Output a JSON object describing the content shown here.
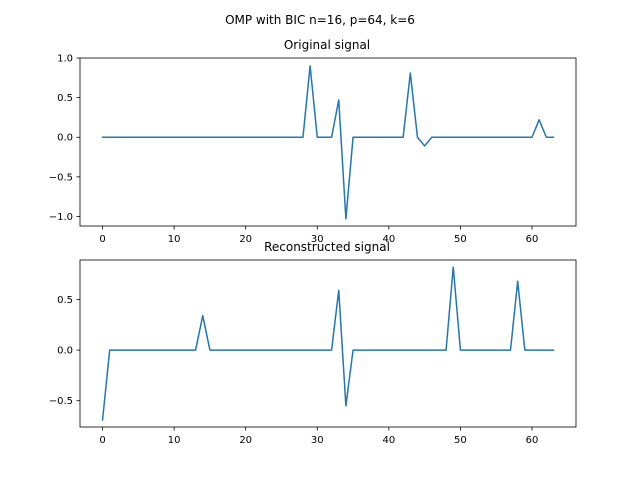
{
  "suptitle": "OMP with BIC n=16, p=64, k=6",
  "chart_data": [
    {
      "type": "line",
      "title": "Original signal",
      "xlabel": "",
      "ylabel": "",
      "xlim": [
        -3.15,
        66.15
      ],
      "ylim": [
        -1.12,
        1.0
      ],
      "xticks": [
        0,
        10,
        20,
        30,
        40,
        50,
        60
      ],
      "yticks": [
        -1.0,
        -0.5,
        0.0,
        0.5,
        1.0
      ],
      "xtick_labels": [
        "0",
        "10",
        "20",
        "30",
        "40",
        "50",
        "60"
      ],
      "ytick_labels": [
        "−1.0",
        "−0.5",
        "0.0",
        "0.5",
        "1.0"
      ],
      "color": "#1f77b4",
      "x": [
        0,
        1,
        2,
        3,
        4,
        5,
        6,
        7,
        8,
        9,
        10,
        11,
        12,
        13,
        14,
        15,
        16,
        17,
        18,
        19,
        20,
        21,
        22,
        23,
        24,
        25,
        26,
        27,
        28,
        29,
        30,
        31,
        32,
        33,
        34,
        35,
        36,
        37,
        38,
        39,
        40,
        41,
        42,
        43,
        44,
        45,
        46,
        47,
        48,
        49,
        50,
        51,
        52,
        53,
        54,
        55,
        56,
        57,
        58,
        59,
        60,
        61,
        62,
        63
      ],
      "y": [
        0,
        0,
        0,
        0,
        0,
        0,
        0,
        0,
        0,
        0,
        0,
        0,
        0,
        0,
        0,
        0,
        0,
        0,
        0,
        0,
        0,
        0,
        0,
        0,
        0,
        0,
        0,
        0,
        0,
        0.9,
        0,
        0,
        0,
        0.47,
        -1.03,
        0,
        0,
        0,
        0,
        0,
        0,
        0,
        0,
        0.81,
        0,
        -0.11,
        0,
        0,
        0,
        0,
        0,
        0,
        0,
        0,
        0,
        0,
        0,
        0,
        0,
        0,
        0,
        0.22,
        0,
        0
      ]
    },
    {
      "type": "line",
      "title": "Reconstructed signal",
      "xlabel": "",
      "ylabel": "",
      "xlim": [
        -3.15,
        66.15
      ],
      "ylim": [
        -0.76,
        0.89
      ],
      "xticks": [
        0,
        10,
        20,
        30,
        40,
        50,
        60
      ],
      "yticks": [
        -0.5,
        0.0,
        0.5
      ],
      "xtick_labels": [
        "0",
        "10",
        "20",
        "30",
        "40",
        "50",
        "60"
      ],
      "ytick_labels": [
        "−0.5",
        "0.0",
        "0.5"
      ],
      "color": "#1f77b4",
      "x": [
        0,
        1,
        2,
        3,
        4,
        5,
        6,
        7,
        8,
        9,
        10,
        11,
        12,
        13,
        14,
        15,
        16,
        17,
        18,
        19,
        20,
        21,
        22,
        23,
        24,
        25,
        26,
        27,
        28,
        29,
        30,
        31,
        32,
        33,
        34,
        35,
        36,
        37,
        38,
        39,
        40,
        41,
        42,
        43,
        44,
        45,
        46,
        47,
        48,
        49,
        50,
        51,
        52,
        53,
        54,
        55,
        56,
        57,
        58,
        59,
        60,
        61,
        62,
        63
      ],
      "y": [
        -0.69,
        0,
        0,
        0,
        0,
        0,
        0,
        0,
        0,
        0,
        0,
        0,
        0,
        0,
        0.34,
        0,
        0,
        0,
        0,
        0,
        0,
        0,
        0,
        0,
        0,
        0,
        0,
        0,
        0,
        0,
        0,
        0,
        0,
        0.59,
        -0.55,
        0,
        0,
        0,
        0,
        0,
        0,
        0,
        0,
        0,
        0,
        0,
        0,
        0,
        0,
        0.82,
        0,
        0,
        0,
        0,
        0,
        0,
        0,
        0,
        0.68,
        0,
        0,
        0,
        0,
        0
      ]
    }
  ]
}
